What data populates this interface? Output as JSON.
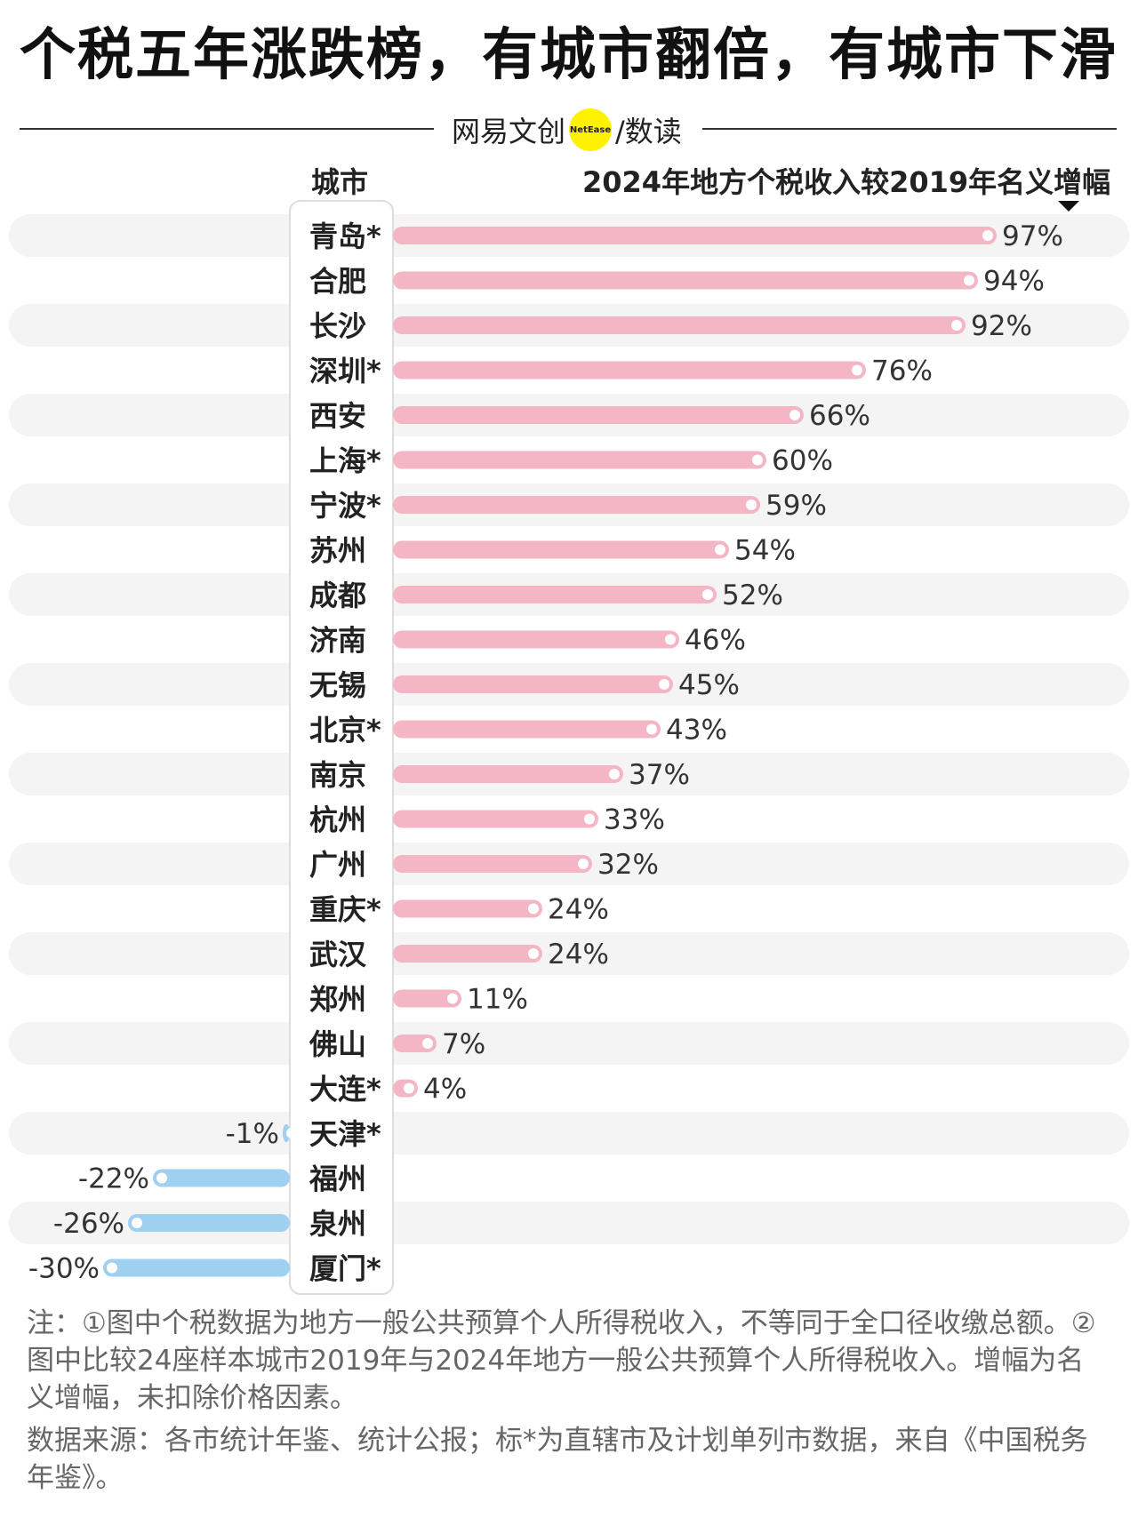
{
  "title": "个税五年涨跌榜，有城市翻倍，有城市下滑",
  "brand": {
    "name": "网易文创",
    "badge": "NetEase",
    "section": "/数读"
  },
  "headers": {
    "city": "城市",
    "metric": "2024年地方个税收入较2019年名义增幅"
  },
  "colors": {
    "positive": "#f4b6c4",
    "negative": "#9fd0f0",
    "stripe": "#f4f4f4"
  },
  "chart_data": {
    "type": "bar",
    "orientation": "horizontal",
    "categories": [
      "青岛*",
      "合肥",
      "长沙",
      "深圳*",
      "西安",
      "上海*",
      "宁波*",
      "苏州",
      "成都",
      "济南",
      "无锡",
      "北京*",
      "南京",
      "杭州",
      "广州",
      "重庆*",
      "武汉",
      "郑州",
      "佛山",
      "大连*",
      "天津*",
      "福州",
      "泉州",
      "厦门*"
    ],
    "values": [
      97,
      94,
      92,
      76,
      66,
      60,
      59,
      54,
      52,
      46,
      45,
      43,
      37,
      33,
      32,
      24,
      24,
      11,
      7,
      4,
      -1,
      -22,
      -26,
      -30
    ],
    "labels": [
      "97%",
      "94%",
      "92%",
      "76%",
      "66%",
      "60%",
      "59%",
      "54%",
      "52%",
      "46%",
      "45%",
      "43%",
      "37%",
      "33%",
      "32%",
      "24%",
      "24%",
      "11%",
      "7%",
      "4%",
      "-1%",
      "-22%",
      "-26%",
      "-30%"
    ],
    "unit": "%"
  },
  "notes": {
    "note1": "注：①图中个税数据为地方一般公共预算个人所得税收入，不等同于全口径收缴总额。②图中比较24座样本城市2019年与2024年地方一般公共预算个人所得税收入。增幅为名义增幅，未扣除价格因素。",
    "source": "数据来源：各市统计年鉴、统计公报；标*为直辖市及计划单列市数据，来自《中国税务年鉴》。"
  }
}
